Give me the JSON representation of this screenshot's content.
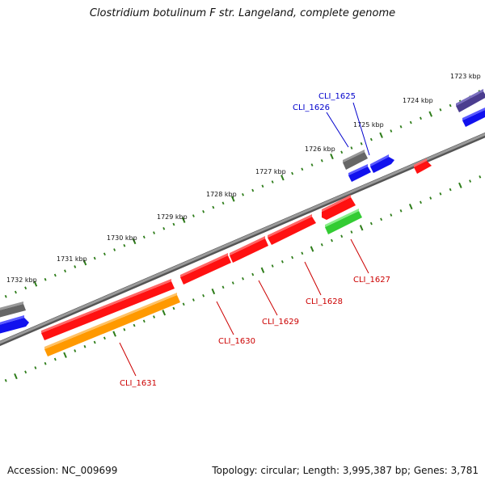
{
  "title": "Clostridium botulinum F str. Langeland, complete genome",
  "footer": {
    "accession": "Accession: NC_009699",
    "summary": "Topology: circular; Length: 3,995,387 bp; Genes: 3,781"
  },
  "ticks": [
    {
      "label": "1723 kbp"
    },
    {
      "label": "1724 kbp"
    },
    {
      "label": "1725 kbp"
    },
    {
      "label": "1726 kbp"
    },
    {
      "label": "1727 kbp"
    },
    {
      "label": "1728 kbp"
    },
    {
      "label": "1729 kbp"
    },
    {
      "label": "1730 kbp"
    },
    {
      "label": "1731 kbp"
    },
    {
      "label": "1732 kbp"
    }
  ],
  "gene_labels": [
    {
      "name": "CLI_1625",
      "color": "#0000cc"
    },
    {
      "name": "CLI_1626",
      "color": "#0000cc"
    },
    {
      "name": "CLI_1627",
      "color": "#cc0000"
    },
    {
      "name": "CLI_1628",
      "color": "#cc0000"
    },
    {
      "name": "CLI_1629",
      "color": "#cc0000"
    },
    {
      "name": "CLI_1630",
      "color": "#cc0000"
    },
    {
      "name": "CLI_1631",
      "color": "#cc0000"
    }
  ],
  "colors": {
    "backbone": "#888888",
    "tick": "#2e7d1a",
    "cds_red": "#ff1111",
    "cds_blue": "#1111ee",
    "cds_gray": "#777777",
    "cds_purple": "#4b3d8f",
    "orange": "#ff9900",
    "green": "#33cc33"
  }
}
